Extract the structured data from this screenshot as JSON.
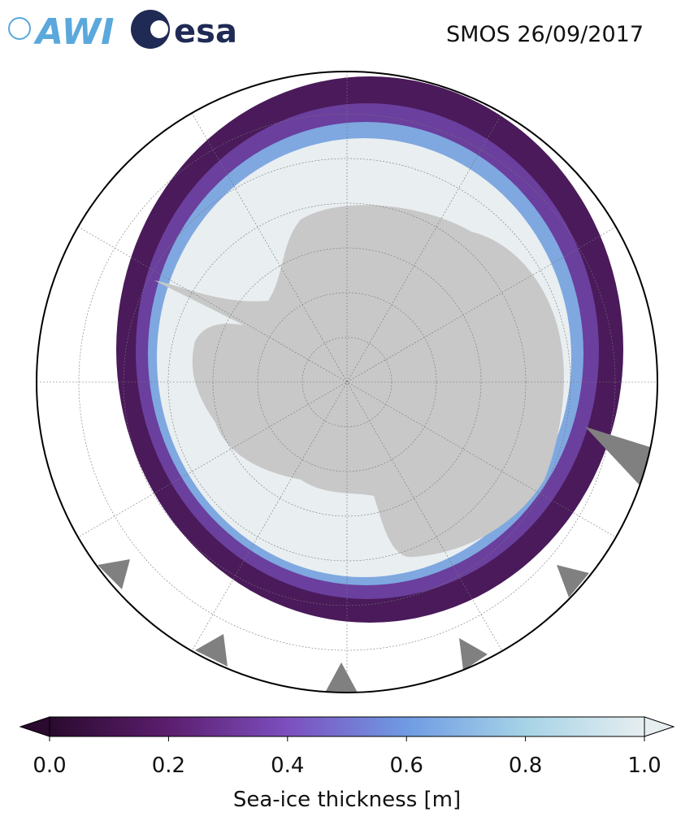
{
  "header": {
    "logos": [
      "AWI",
      "esa"
    ],
    "title": "SMOS 26/09/2017"
  },
  "colorbar": {
    "label": "Sea-ice thickness [m]",
    "lim": [
      0,
      1
    ],
    "ticks": [
      {
        "value": 0,
        "label": "0.0"
      },
      {
        "value": 0.2,
        "label": "0.2"
      },
      {
        "value": 0.4,
        "label": "0.4"
      },
      {
        "value": 0.6,
        "label": "0.6"
      },
      {
        "value": 0.8,
        "label": "0.8"
      },
      {
        "value": 1,
        "label": "1.0"
      }
    ],
    "colors": [
      "#2a0a2e",
      "#5c1e6e",
      "#7c4fbf",
      "#6f9be3",
      "#a6d3e6",
      "#e6eef0"
    ]
  }
}
